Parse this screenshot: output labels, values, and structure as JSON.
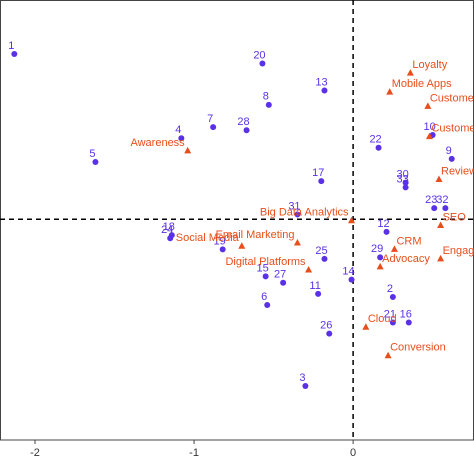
{
  "chart_data": {
    "type": "scatter",
    "xlim": [
      -2.22,
      0.76
    ],
    "ylim": [
      -1.39,
      1.38
    ],
    "xticks": [
      -2,
      -1,
      0
    ],
    "series": [
      {
        "color": "#5a31e6",
        "marker": "circle",
        "labels": [
          "1",
          "2",
          "3",
          "4",
          "5",
          "6",
          "7",
          "8",
          "9",
          "10",
          "11",
          "12",
          "13",
          "14",
          "15",
          "16",
          "17",
          "18",
          "19",
          "20",
          "21",
          "22",
          "23",
          "24",
          "25",
          "26",
          "27",
          "28",
          "29",
          "30",
          "31",
          "32",
          "33"
        ],
        "x": [
          -2.13,
          0.25,
          -0.3,
          -1.08,
          -1.62,
          -0.54,
          -0.88,
          -0.53,
          0.62,
          0.5,
          -0.22,
          0.21,
          -0.18,
          -0.01,
          -0.55,
          0.35,
          -0.2,
          -1.14,
          -0.82,
          -0.57,
          0.25,
          0.16,
          0.51,
          -1.15,
          -0.18,
          -0.15,
          -0.44,
          -0.67,
          0.17,
          0.33,
          -0.35,
          0.58,
          0.33
        ],
        "values": [
          1.04,
          -0.49,
          -1.05,
          0.51,
          0.36,
          -0.54,
          0.58,
          0.72,
          0.38,
          0.53,
          -0.47,
          -0.08,
          0.81,
          -0.38,
          -0.36,
          -0.65,
          0.24,
          -0.1,
          -0.19,
          0.98,
          -0.65,
          0.45,
          0.07,
          -0.12,
          -0.25,
          -0.72,
          -0.4,
          0.56,
          -0.24,
          0.23,
          0.03,
          0.07,
          0.2
        ]
      },
      {
        "color": "#e84e1b",
        "marker": "triangle",
        "labels": [
          "Loyalty",
          "Mobile Apps",
          "Custome",
          "Custome",
          "Review",
          "Awareness",
          "Big Data Analytics",
          "SEO",
          "CRM",
          "Social Media",
          "Email Marketing",
          "Digital Platforms",
          "Advocacy",
          "Engag",
          "Cloud",
          "Conversion"
        ],
        "x": [
          0.36,
          0.23,
          0.47,
          0.48,
          0.54,
          -1.04,
          -0.01,
          0.55,
          0.26,
          -0.7,
          -0.35,
          -0.28,
          0.17,
          0.55,
          0.08,
          0.22
        ],
        "values": [
          0.92,
          0.8,
          0.71,
          0.52,
          0.25,
          0.43,
          -0.01,
          -0.04,
          -0.19,
          -0.17,
          -0.15,
          -0.32,
          -0.3,
          -0.25,
          -0.68,
          -0.86
        ]
      }
    ]
  }
}
